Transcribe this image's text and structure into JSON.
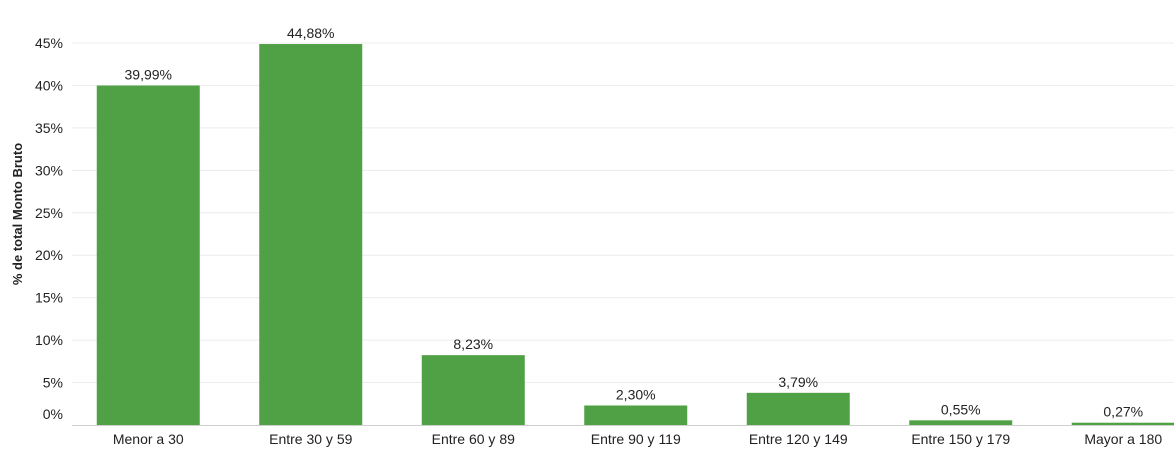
{
  "chart_data": {
    "type": "bar",
    "ylabel": "% de total Monto Bruto",
    "xlabel": "",
    "title": "",
    "categories": [
      "Menor a 30",
      "Entre 30 y 59",
      "Entre 60 y 89",
      "Entre 90 y 119",
      "Entre 120 y 149",
      "Entre 150 y 179",
      "Mayor a 180"
    ],
    "values": [
      39.99,
      44.88,
      8.23,
      2.3,
      3.79,
      0.55,
      0.27
    ],
    "value_labels": [
      "39,99%",
      "44,88%",
      "8,23%",
      "2,30%",
      "3,79%",
      "0,55%",
      "0,27%"
    ],
    "ylim": [
      0,
      45
    ],
    "yticks": [
      0,
      5,
      10,
      15,
      20,
      25,
      30,
      35,
      40,
      45
    ],
    "ytick_labels": [
      "0%",
      "5%",
      "10%",
      "15%",
      "20%",
      "25%",
      "30%",
      "35%",
      "40%",
      "45%"
    ],
    "grid": true,
    "bar_color": "#50a146"
  }
}
